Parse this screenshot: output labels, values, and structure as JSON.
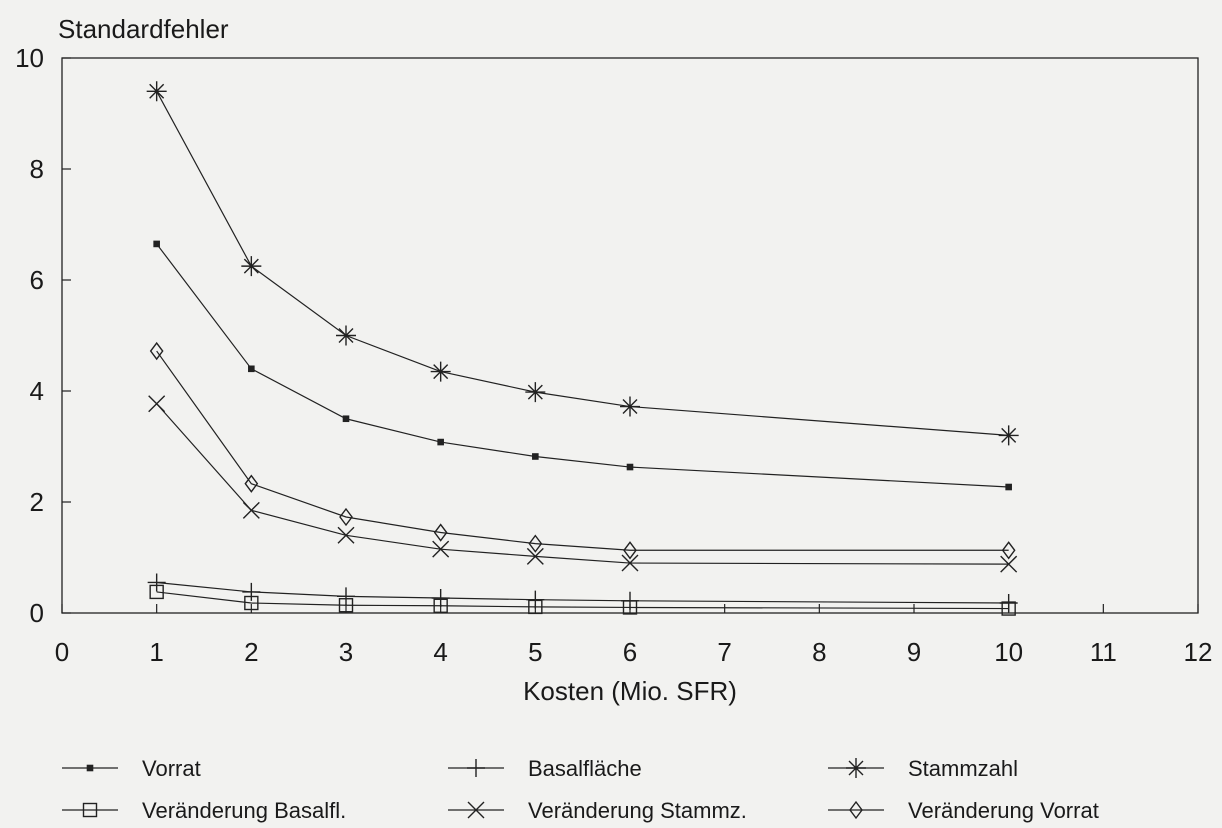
{
  "chart_data": {
    "type": "line",
    "ylabel": "Standardfehler",
    "xlabel": "Kosten (Mio. SFR)",
    "xlim": [
      0,
      12
    ],
    "ylim": [
      0,
      10
    ],
    "x_ticks": [
      "0",
      "1",
      "2",
      "3",
      "4",
      "5",
      "6",
      "7",
      "8",
      "9",
      "10",
      "11",
      "12"
    ],
    "y_ticks": [
      "0",
      "2",
      "4",
      "6",
      "8",
      "10"
    ],
    "grid": false,
    "legend_position": "bottom",
    "x": [
      1,
      2,
      3,
      4,
      5,
      6,
      10
    ],
    "series": [
      {
        "name": "Vorrat",
        "marker": "small-square",
        "values": [
          6.65,
          4.4,
          3.5,
          3.08,
          2.82,
          2.63,
          2.27
        ]
      },
      {
        "name": "Basalfläche",
        "marker": "plus",
        "values": [
          0.55,
          0.38,
          0.3,
          0.27,
          0.24,
          0.22,
          0.18
        ]
      },
      {
        "name": "Stammzahl",
        "marker": "asterisk",
        "values": [
          9.4,
          6.25,
          5.0,
          4.35,
          3.98,
          3.72,
          3.2
        ]
      },
      {
        "name": "Veränderung Basalfl.",
        "marker": "square",
        "values": [
          0.38,
          0.18,
          0.14,
          0.13,
          0.11,
          0.1,
          0.08
        ]
      },
      {
        "name": "Veränderung Stammz.",
        "marker": "x",
        "values": [
          3.77,
          1.85,
          1.4,
          1.15,
          1.02,
          0.9,
          0.88
        ]
      },
      {
        "name": "Veränderung Vorrat",
        "marker": "diamond",
        "values": [
          4.72,
          2.33,
          1.73,
          1.45,
          1.25,
          1.13,
          1.13
        ]
      }
    ]
  }
}
